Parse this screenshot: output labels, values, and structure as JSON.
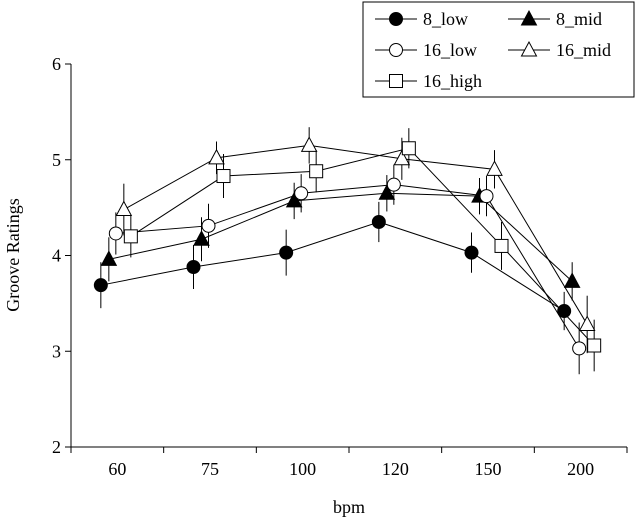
{
  "chart_data": {
    "type": "line",
    "title": "",
    "xlabel": "bpm",
    "ylabel": "Groove Ratings",
    "categories": [
      "60",
      "75",
      "100",
      "120",
      "150",
      "200"
    ],
    "ylim": [
      2,
      6
    ],
    "yticks": [
      "2",
      "3",
      "4",
      "5",
      "6"
    ],
    "grid": false,
    "legend_position": "top-right",
    "series": [
      {
        "name": "8_low",
        "marker": "circle",
        "filled": true,
        "values": [
          3.69,
          3.88,
          4.03,
          4.35,
          4.03,
          3.42
        ],
        "errors": [
          0.24,
          0.23,
          0.24,
          0.21,
          0.21,
          0.2
        ]
      },
      {
        "name": "8_mid",
        "marker": "triangle",
        "filled": true,
        "values": [
          3.96,
          4.17,
          4.57,
          4.65,
          4.62,
          3.73
        ],
        "errors": [
          0.23,
          0.23,
          0.19,
          0.19,
          0.19,
          0.2
        ]
      },
      {
        "name": "16_low",
        "marker": "circle",
        "filled": false,
        "values": [
          4.23,
          4.31,
          4.65,
          4.74,
          4.62,
          3.03
        ],
        "errors": [
          0.22,
          0.23,
          0.2,
          0.21,
          0.21,
          0.27
        ]
      },
      {
        "name": "16_mid",
        "marker": "triangle",
        "filled": false,
        "values": [
          4.48,
          5.02,
          5.15,
          5.01,
          4.9,
          3.28
        ],
        "errors": [
          0.27,
          0.17,
          0.19,
          0.22,
          0.2,
          0.3
        ]
      },
      {
        "name": "16_high",
        "marker": "square",
        "filled": false,
        "values": [
          4.2,
          4.83,
          4.88,
          5.12,
          4.1,
          3.06
        ],
        "errors": [
          0.22,
          0.23,
          0.22,
          0.21,
          0.25,
          0.27
        ]
      }
    ]
  }
}
